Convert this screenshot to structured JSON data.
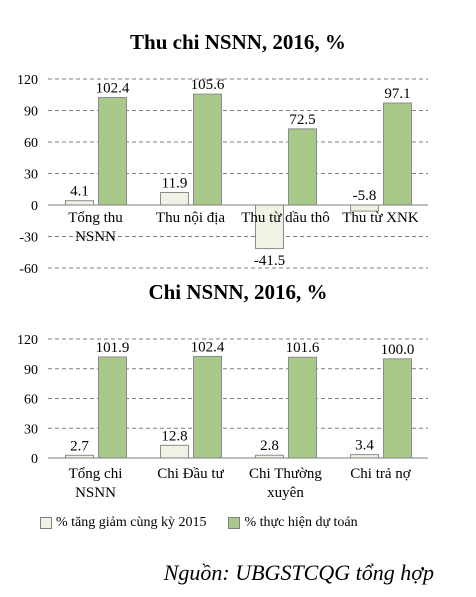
{
  "chart_data": [
    {
      "type": "bar",
      "title": "Thu chi NSNN, 2016, %",
      "categories": [
        "Tổng thu\nNSNN",
        "Thu nội địa",
        "Thu từ dầu thô",
        "Thu từ XNK"
      ],
      "series": [
        {
          "name": "% tăng giảm cùng kỳ 2015",
          "values": [
            4.1,
            11.9,
            -41.5,
            -5.8
          ],
          "labels": [
            "4.1",
            "11.9",
            "-41.5",
            "-5.8"
          ]
        },
        {
          "name": "% thực hiện dự toán",
          "values": [
            102.4,
            105.6,
            72.5,
            97.1
          ],
          "labels": [
            "102.4",
            "105.6",
            "72.5",
            "97.1"
          ]
        }
      ],
      "ylim": [
        -60,
        120
      ],
      "yticks": [
        "120",
        "90",
        "60",
        "30",
        "0",
        "-30",
        "-60"
      ],
      "ytick_values": [
        120,
        90,
        60,
        30,
        0,
        -30,
        -60
      ],
      "grid": true
    },
    {
      "type": "bar",
      "title": "Chi NSNN, 2016, %",
      "categories": [
        "Tổng chi\nNSNN",
        "Chi Đầu tư",
        "Chi Thường\nxuyên",
        "Chi trả nợ"
      ],
      "series": [
        {
          "name": "% tăng giảm cùng kỳ 2015",
          "values": [
            2.7,
            12.8,
            2.8,
            3.4
          ],
          "labels": [
            "2.7",
            "12.8",
            "2.8",
            "3.4"
          ]
        },
        {
          "name": "% thực hiện dự toán",
          "values": [
            101.9,
            102.4,
            101.6,
            100.0
          ],
          "labels": [
            "101.9",
            "102.4",
            "101.6",
            "100.0"
          ]
        }
      ],
      "ylim": [
        0,
        120
      ],
      "yticks": [
        "120",
        "90",
        "60",
        "30",
        "0"
      ],
      "ytick_values": [
        120,
        90,
        60,
        30,
        0
      ],
      "grid": true
    }
  ],
  "legend": {
    "items": [
      {
        "label": "% tăng giảm cùng kỳ 2015",
        "color": "#eff3e6"
      },
      {
        "label": "% thực hiện dự toán",
        "color": "#a9c98a"
      }
    ]
  },
  "source": "Nguồn: UBGSTCQG tổng hợp"
}
